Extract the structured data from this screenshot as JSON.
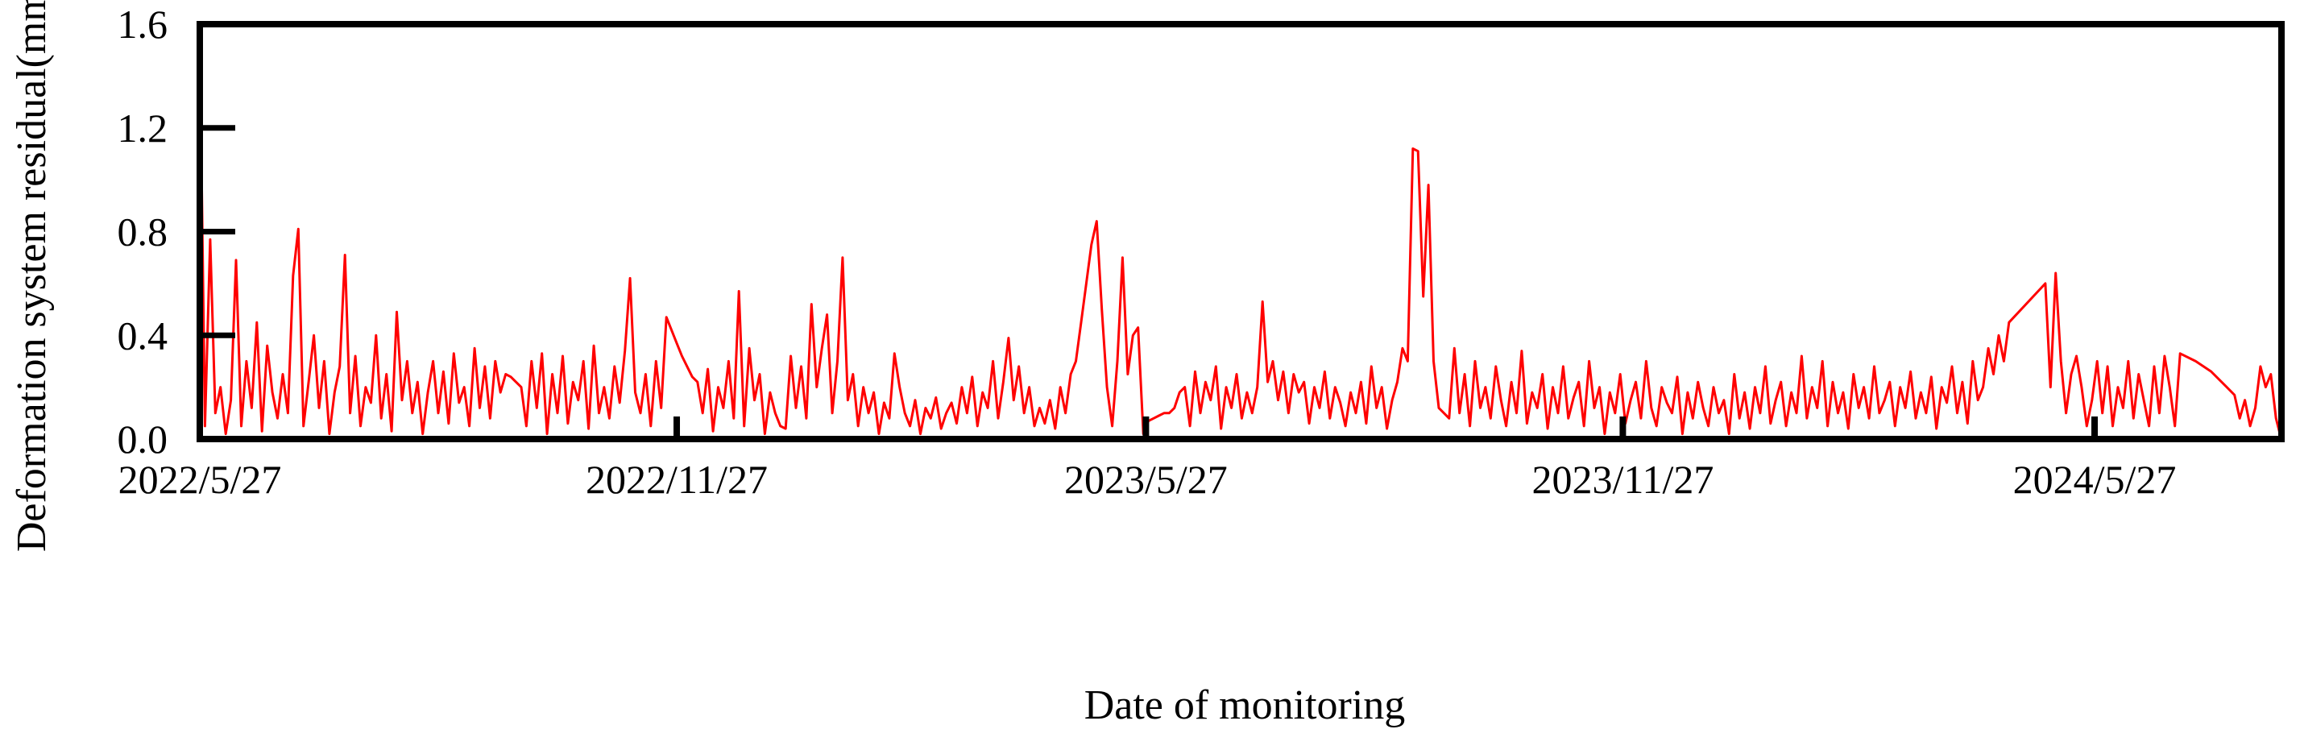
{
  "chart_data": {
    "type": "line",
    "title": "",
    "xlabel": "Date of monitoring",
    "ylabel": "Deformation system residual(mm)",
    "ylim": [
      0,
      1.6
    ],
    "yticks": [
      "0.0",
      "0.4",
      "0.8",
      "1.2",
      "1.6"
    ],
    "ytick_values": [
      0,
      0.4,
      0.8,
      1.2,
      1.6
    ],
    "x_start_date": "2022/5/27",
    "xlim_days": [
      0,
      803
    ],
    "xticks": [
      {
        "label": "2022/5/27",
        "day": 0
      },
      {
        "label": "2022/11/27",
        "day": 184
      },
      {
        "label": "2023/5/27",
        "day": 365
      },
      {
        "label": "2023/11/27",
        "day": 549
      },
      {
        "label": "2024/5/27",
        "day": 731
      }
    ],
    "grid": false,
    "legend": "none",
    "series": [
      {
        "name": "Deformation system residual",
        "color": "#ff0000",
        "segments": [
          {
            "start_day": 0,
            "step_days": 2,
            "values": [
              1.55,
              0.05,
              0.77,
              0.1,
              0.2,
              0.02,
              0.15,
              0.69,
              0.05,
              0.3,
              0.12,
              0.45,
              0.03,
              0.36,
              0.18,
              0.08,
              0.25,
              0.1,
              0.63,
              0.81,
              0.05,
              0.22,
              0.4,
              0.12,
              0.3,
              0.02,
              0.18,
              0.28,
              0.71,
              0.1,
              0.32,
              0.05,
              0.2,
              0.14,
              0.4,
              0.08,
              0.25,
              0.03,
              0.49,
              0.15,
              0.3,
              0.1,
              0.22,
              0.02,
              0.18,
              0.3,
              0.1,
              0.26,
              0.06,
              0.33,
              0.14,
              0.2,
              0.05,
              0.35,
              0.12,
              0.28,
              0.08,
              0.3,
              0.18,
              0.25,
              0.24,
              0.22,
              0.2
            ]
          },
          {
            "start_day": 126,
            "step_days": 2,
            "values": [
              0.05,
              0.3,
              0.12,
              0.33,
              0.02,
              0.25,
              0.1,
              0.32,
              0.06,
              0.22,
              0.15,
              0.3,
              0.04,
              0.36,
              0.1,
              0.2,
              0.08,
              0.28,
              0.14,
              0.34,
              0.62,
              0.18,
              0.1,
              0.25,
              0.05,
              0.3,
              0.12,
              0.47,
              0.42,
              0.37,
              0.32,
              0.28,
              0.24,
              0.22
            ]
          },
          {
            "start_day": 194,
            "step_days": 2,
            "values": [
              0.1,
              0.27,
              0.03,
              0.2,
              0.12,
              0.3,
              0.08,
              0.57,
              0.05,
              0.35,
              0.15,
              0.25,
              0.02,
              0.18,
              0.1,
              0.05,
              0.04,
              0.32,
              0.12,
              0.28,
              0.08,
              0.52,
              0.2,
              0.35,
              0.48,
              0.1,
              0.3,
              0.7,
              0.15,
              0.25,
              0.05,
              0.2,
              0.1,
              0.18,
              0.02,
              0.14,
              0.08,
              0.33,
              0.2,
              0.1
            ]
          },
          {
            "start_day": 274,
            "step_days": 2,
            "values": [
              0.05,
              0.15,
              0.02,
              0.12,
              0.08,
              0.16,
              0.04,
              0.1,
              0.14,
              0.06,
              0.2,
              0.1,
              0.24,
              0.05,
              0.18,
              0.12,
              0.3,
              0.08,
              0.22,
              0.39,
              0.15,
              0.28,
              0.1,
              0.2,
              0.05,
              0.12,
              0.06,
              0.15,
              0.04,
              0.2,
              0.1,
              0.25,
              0.3,
              0.45,
              0.6,
              0.75,
              0.84,
              0.5,
              0.2,
              0.05,
              0.3,
              0.7,
              0.25,
              0.4,
              0.43,
              0.02,
              0.07,
              0.08,
              0.09,
              0.1,
              0.1,
              0.12
            ]
          },
          {
            "start_day": 378,
            "step_days": 2,
            "values": [
              0.18,
              0.2,
              0.05,
              0.26,
              0.1,
              0.22,
              0.15,
              0.28,
              0.04,
              0.2,
              0.12,
              0.25,
              0.08,
              0.18,
              0.1,
              0.2,
              0.53,
              0.22,
              0.3,
              0.15,
              0.26,
              0.1,
              0.25,
              0.18,
              0.22,
              0.06,
              0.2,
              0.12,
              0.26,
              0.08,
              0.2,
              0.14,
              0.05,
              0.18,
              0.1,
              0.22,
              0.06,
              0.28,
              0.12,
              0.2,
              0.04,
              0.15,
              0.22,
              0.35,
              0.3,
              1.12,
              1.11,
              0.55,
              0.98,
              0.3,
              0.12,
              0.1,
              0.08,
              0.35
            ]
          },
          {
            "start_day": 486,
            "step_days": 2,
            "values": [
              0.1,
              0.25,
              0.05,
              0.3,
              0.12,
              0.2,
              0.08,
              0.28,
              0.15,
              0.05,
              0.22,
              0.1,
              0.34,
              0.06,
              0.18,
              0.12,
              0.25,
              0.04,
              0.2,
              0.1,
              0.28,
              0.08,
              0.16,
              0.22,
              0.05,
              0.3,
              0.12,
              0.2,
              0.02,
              0.18,
              0.1,
              0.25,
              0.06,
              0.15,
              0.22,
              0.08,
              0.3,
              0.12,
              0.05,
              0.2,
              0.14,
              0.1,
              0.24,
              0.02,
              0.18,
              0.08,
              0.22,
              0.12,
              0.05,
              0.2,
              0.1,
              0.15,
              0.02,
              0.25,
              0.08,
              0.18,
              0.04,
              0.2,
              0.1,
              0.28,
              0.06,
              0.15,
              0.22,
              0.05,
              0.18,
              0.1,
              0.32,
              0.08,
              0.2,
              0.12,
              0.3,
              0.05,
              0.22,
              0.1,
              0.18,
              0.04,
              0.25,
              0.12,
              0.2,
              0.08,
              0.28,
              0.1,
              0.15,
              0.22,
              0.05,
              0.2,
              0.12,
              0.26,
              0.08,
              0.18,
              0.1,
              0.24,
              0.04,
              0.2,
              0.14,
              0.28,
              0.1,
              0.22,
              0.06,
              0.3,
              0.15,
              0.2,
              0.35,
              0.25,
              0.4,
              0.3,
              0.45
            ]
          },
          {
            "start_day": 712,
            "step_days": 2,
            "values": [
              0.6,
              0.2,
              0.64,
              0.3,
              0.1,
              0.25,
              0.32,
              0.2,
              0.05,
              0.15,
              0.3,
              0.1,
              0.28,
              0.05,
              0.2,
              0.12,
              0.3,
              0.08,
              0.25,
              0.15,
              0.05,
              0.28,
              0.1,
              0.32,
              0.2,
              0.05,
              0.33
            ]
          },
          {
            "start_day": 770,
            "step_days": 6,
            "values": [
              0.3,
              0.26,
              0.2
            ]
          },
          {
            "start_day": 785,
            "step_days": 2,
            "values": [
              0.17,
              0.08,
              0.15,
              0.05,
              0.12,
              0.28,
              0.2,
              0.25,
              0.08,
              0.0
            ]
          },
          {
            "start_day": 803,
            "step_days": 1,
            "values": [
              0.28
            ]
          }
        ]
      }
    ]
  }
}
